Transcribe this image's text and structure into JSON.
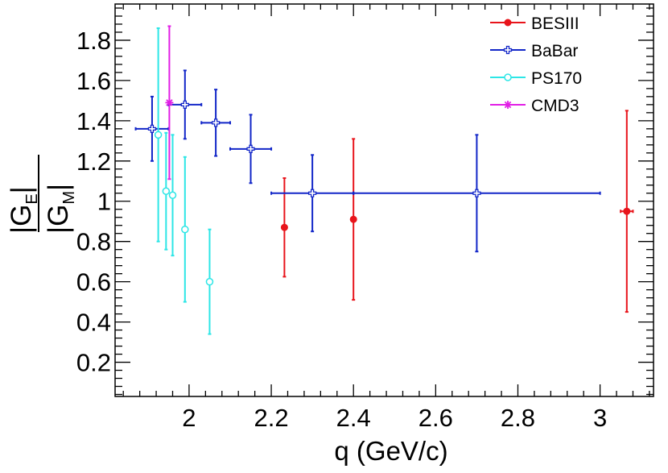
{
  "chart_data": {
    "type": "scatter",
    "xlabel": "q (GeV/c)",
    "ylabel": {
      "numerator": "|G",
      "numerator_sub": "E",
      "numerator_end": "|",
      "denominator": "|G",
      "denominator_sub": "M",
      "denominator_end": "|"
    },
    "xlim": [
      1.82,
      3.13
    ],
    "ylim": [
      0.03,
      1.98
    ],
    "x_ticks": [
      2,
      2.2,
      2.4,
      2.6,
      2.8,
      3
    ],
    "x_tick_labels": [
      "2",
      "2.2",
      "2.4",
      "2.6",
      "2.8",
      "3"
    ],
    "y_ticks": [
      0.2,
      0.4,
      0.6,
      0.8,
      1.0,
      1.2,
      1.4,
      1.6,
      1.8
    ],
    "y_tick_labels": [
      "0.2",
      "0.4",
      "0.6",
      "0.8",
      "1",
      "1.2",
      "1.4",
      "1.6",
      "1.8"
    ],
    "grid": false,
    "legend_position": "top-right",
    "series": [
      {
        "name": "BESIII",
        "color": "#e8141b",
        "marker": "filled-circle",
        "points": [
          {
            "x": 2.232,
            "y": 0.87,
            "xerr": 0.0,
            "yerr": 0.245
          },
          {
            "x": 2.4,
            "y": 0.91,
            "xerr": 0.0,
            "yerr": 0.4
          },
          {
            "x": 3.065,
            "y": 0.95,
            "xerr": 0.015,
            "yerr": 0.5
          }
        ]
      },
      {
        "name": "BaBar",
        "color": "#1226c8",
        "marker": "open-cross",
        "points": [
          {
            "x": 1.91,
            "y": 1.36,
            "xerr": 0.04,
            "yerr": 0.16
          },
          {
            "x": 1.99,
            "y": 1.48,
            "xerr": 0.04,
            "yerr": 0.17
          },
          {
            "x": 2.065,
            "y": 1.39,
            "xerr": 0.035,
            "yerr": 0.165
          },
          {
            "x": 2.15,
            "y": 1.26,
            "xerr": 0.05,
            "yerr": 0.17
          },
          {
            "x": 2.3,
            "y": 1.04,
            "xerr": 0.1,
            "yerr": 0.19
          },
          {
            "x": 2.7,
            "y": 1.04,
            "xerr": 0.3,
            "yerr": 0.29
          }
        ]
      },
      {
        "name": "PS170",
        "color": "#2de6e6",
        "marker": "open-circle",
        "points": [
          {
            "x": 1.925,
            "y": 1.33,
            "xerr": 0.0,
            "yerr": 0.53
          },
          {
            "x": 1.944,
            "y": 1.05,
            "xerr": 0.0,
            "yerr": 0.29
          },
          {
            "x": 1.96,
            "y": 1.03,
            "xerr": 0.0,
            "yerr": 0.3
          },
          {
            "x": 1.99,
            "y": 0.86,
            "xerr": 0.0,
            "yerr": 0.36
          },
          {
            "x": 2.05,
            "y": 0.6,
            "xerr": 0.0,
            "yerr": 0.26
          }
        ]
      },
      {
        "name": "CMD3",
        "color": "#e21ee6",
        "marker": "asterisk",
        "points": [
          {
            "x": 1.952,
            "y": 1.49,
            "xerr": 0.0,
            "yerr": 0.38
          }
        ]
      }
    ]
  }
}
